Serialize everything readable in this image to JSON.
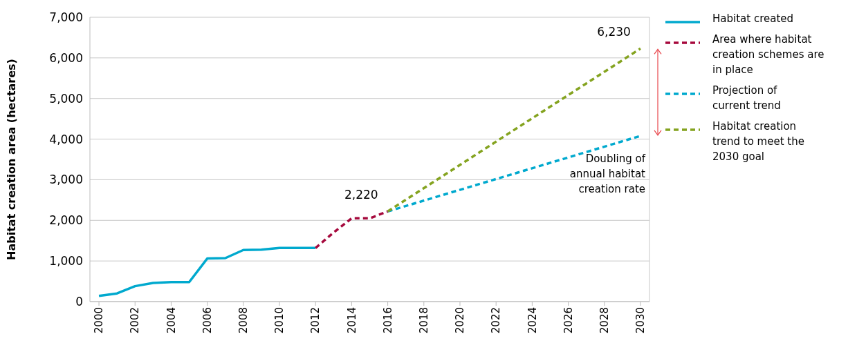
{
  "chart_data": {
    "type": "line",
    "ylabel": "Habitat creation area (hectares)",
    "xlim": [
      1999.5,
      2030.5
    ],
    "xticks": [
      2000,
      2002,
      2004,
      2006,
      2008,
      2010,
      2012,
      2014,
      2016,
      2018,
      2020,
      2022,
      2024,
      2026,
      2028,
      2030
    ],
    "ylim": [
      0,
      7000
    ],
    "yticks": [
      {
        "value": 0,
        "label": "0"
      },
      {
        "value": 1000,
        "label": "1,000"
      },
      {
        "value": 2000,
        "label": "2,000"
      },
      {
        "value": 3000,
        "label": "3,000"
      },
      {
        "value": 4000,
        "label": "4,000"
      },
      {
        "value": 5000,
        "label": "5,000"
      },
      {
        "value": 6000,
        "label": "6,000"
      },
      {
        "value": 7000,
        "label": "7,000"
      }
    ],
    "grid": "y",
    "legend": "right",
    "series": [
      {
        "name": "Habitat created",
        "color": "#00a9ce",
        "line_style": "solid",
        "x": [
          2000,
          2001,
          2002,
          2003,
          2004,
          2005,
          2006,
          2007,
          2008,
          2009,
          2010,
          2011,
          2012
        ],
        "values": [
          140,
          200,
          380,
          460,
          480,
          480,
          1060,
          1070,
          1270,
          1280,
          1320,
          1320,
          1320
        ]
      },
      {
        "name": "Area where habitat creation schemes are in place",
        "color": "#a6093d",
        "line_style": "dashed",
        "x": [
          2012,
          2013,
          2014,
          2015,
          2016
        ],
        "values": [
          1320,
          1700,
          2050,
          2050,
          2220
        ]
      },
      {
        "name": "Projection of current trend",
        "color": "#00a9ce",
        "line_style": "dashed",
        "x": [
          2016,
          2030
        ],
        "values": [
          2220,
          4080
        ]
      },
      {
        "name": "Habitat creation trend to meet the 2030 goal",
        "color": "#84a31f",
        "line_style": "dashed",
        "x": [
          2016,
          2030
        ],
        "values": [
          2220,
          6230
        ]
      }
    ],
    "annotations": [
      {
        "text": "2,220",
        "x": 2016,
        "y": 2220
      },
      {
        "text": "6,230",
        "x": 2030,
        "y": 6230
      },
      "Doubling of annual habitat creation rate"
    ]
  }
}
